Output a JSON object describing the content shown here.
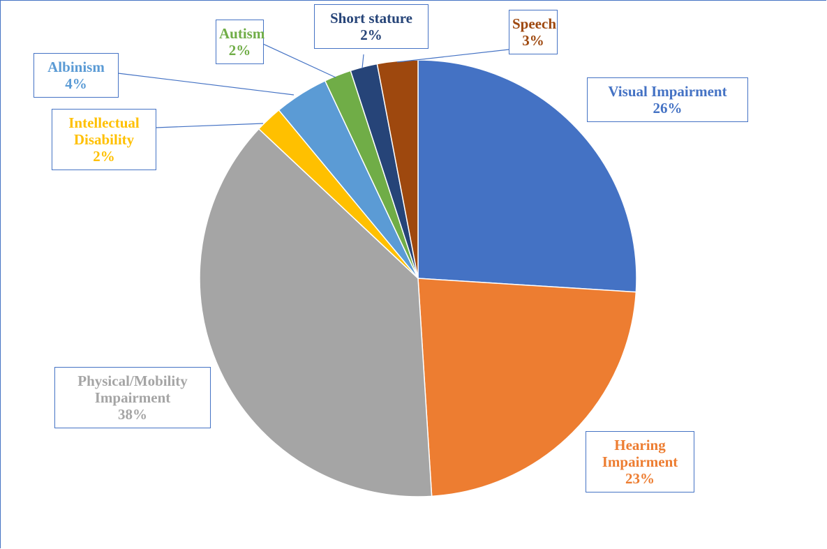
{
  "chart_data": {
    "type": "pie",
    "categories": [
      "Visual Impairment",
      "Hearing Impairment",
      "Physical/Mobility Impairment",
      "Intellectual Disability",
      "Albinism",
      "Autism",
      "Short stature",
      "Speech"
    ],
    "values": [
      26,
      23,
      38,
      2,
      4,
      2,
      2,
      3
    ],
    "value_labels": [
      "26%",
      "23%",
      "38%",
      "2%",
      "4%",
      "2%",
      "2%",
      "3%"
    ],
    "colors": [
      "#4472c4",
      "#ed7d31",
      "#a5a5a5",
      "#ffc000",
      "#5b9bd5",
      "#70ad47",
      "#264478",
      "#9e480e"
    ]
  }
}
